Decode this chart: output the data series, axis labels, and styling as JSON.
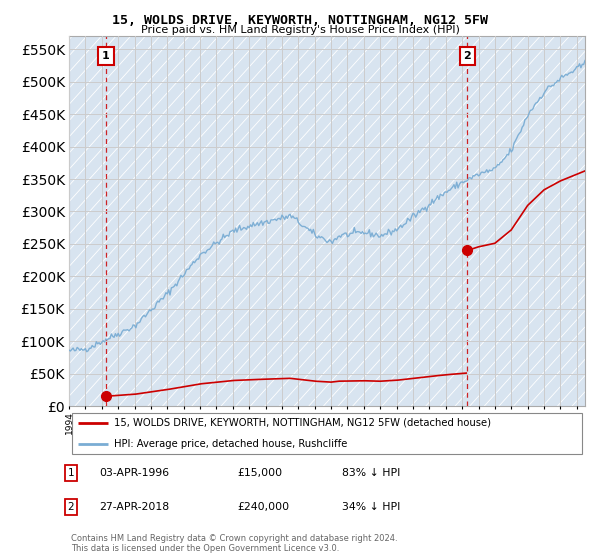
{
  "title": "15, WOLDS DRIVE, KEYWORTH, NOTTINGHAM, NG12 5FW",
  "subtitle": "Price paid vs. HM Land Registry's House Price Index (HPI)",
  "ylim": [
    0,
    570000
  ],
  "yticks": [
    0,
    50000,
    100000,
    150000,
    200000,
    250000,
    300000,
    350000,
    400000,
    450000,
    500000,
    550000
  ],
  "background_color": "#ffffff",
  "grid_color": "#cccccc",
  "hatch_color": "#d8e4f0",
  "hpi_color": "#7aadd4",
  "property_color": "#cc0000",
  "sale1_year": 1996.26,
  "sale1_price": 15000,
  "sale2_year": 2018.32,
  "sale2_price": 240000,
  "legend_property": "15, WOLDS DRIVE, KEYWORTH, NOTTINGHAM, NG12 5FW (detached house)",
  "legend_hpi": "HPI: Average price, detached house, Rushcliffe",
  "note1_label": "1",
  "note1_date": "03-APR-1996",
  "note1_price": "£15,000",
  "note1_pct": "83% ↓ HPI",
  "note2_label": "2",
  "note2_date": "27-APR-2018",
  "note2_price": "£240,000",
  "note2_pct": "34% ↓ HPI",
  "footer": "Contains HM Land Registry data © Crown copyright and database right 2024.\nThis data is licensed under the Open Government Licence v3.0."
}
